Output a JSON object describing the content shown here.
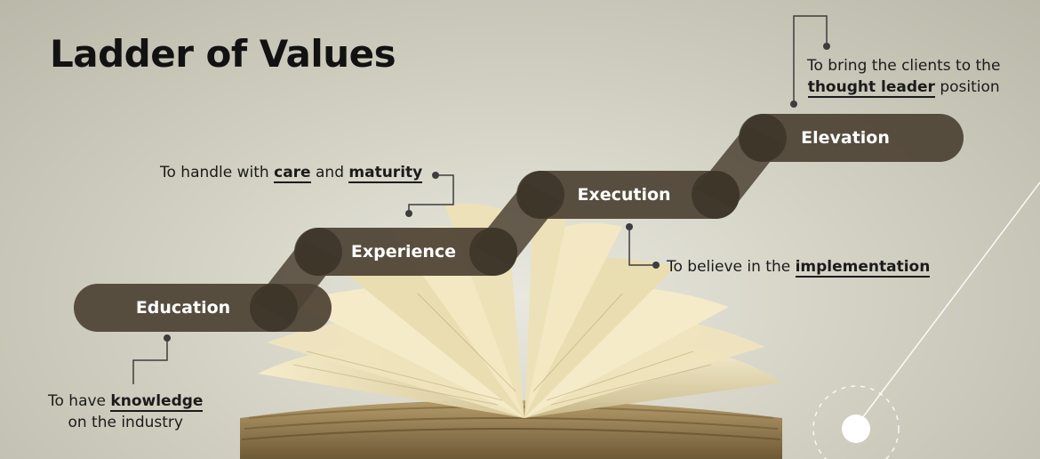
{
  "title": "Ladder of Values",
  "steps": [
    {
      "label": "Education",
      "desc": {
        "pre": "To have ",
        "bold": "knowledge",
        "post": "",
        "line2": "on the industry"
      }
    },
    {
      "label": "Experience",
      "desc": {
        "pre": "To handle with ",
        "bold": "care",
        "mid": " and ",
        "bold2": "maturity"
      }
    },
    {
      "label": "Execution",
      "desc": {
        "pre": "To believe in the ",
        "bold": "implementation"
      }
    },
    {
      "label": "Elevation",
      "desc": {
        "line1": "To bring the clients to the",
        "bold": "thought leader",
        "post": " position"
      }
    }
  ],
  "colors": {
    "pill": "#4d4335",
    "pill_shadow": "#3a3227",
    "connector": "#3d3d3d",
    "accent_line": "#ffffff"
  }
}
